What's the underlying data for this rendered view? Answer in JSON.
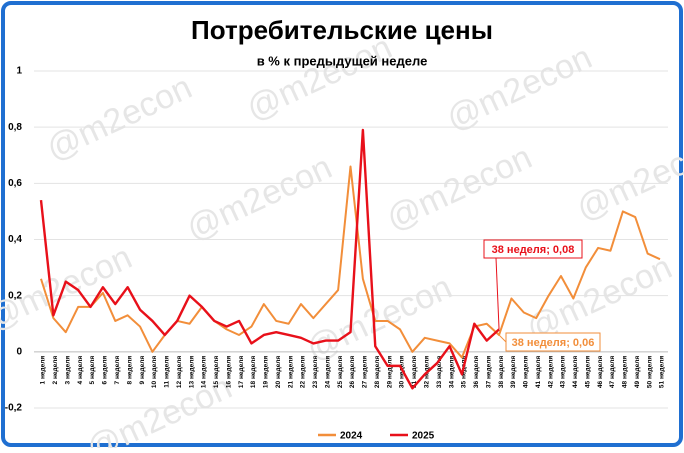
{
  "chart_data": {
    "type": "line",
    "title": "Потребительские цены",
    "subtitle": "в % к предыдущей неделе",
    "watermark": "@m2econ",
    "categories": [
      "1 неделя",
      "2 неделя",
      "3 неделя",
      "4 неделя",
      "5 неделя",
      "6 неделя",
      "7 неделя",
      "8 неделя",
      "9 неделя",
      "10 неделя",
      "11 неделя",
      "12 неделя",
      "13 неделя",
      "14 неделя",
      "15 неделя",
      "16 неделя",
      "17 неделя",
      "18 неделя",
      "19 неделя",
      "20 неделя",
      "21 неделя",
      "22 неделя",
      "23 неделя",
      "24 неделя",
      "25 неделя",
      "26 неделя",
      "27 неделя",
      "28 неделя",
      "29 неделя",
      "30 неделя",
      "31 неделя",
      "32 неделя",
      "33 неделя",
      "34 неделя",
      "35 неделя",
      "36 неделя",
      "37 неделя",
      "38 неделя",
      "39 неделя",
      "40 неделя",
      "41 неделя",
      "42 неделя",
      "43 неделя",
      "44 неделя",
      "45 неделя",
      "46 неделя",
      "47 неделя",
      "48 неделя",
      "49 неделя",
      "50 неделя",
      "51 неделя"
    ],
    "series": [
      {
        "name": "2024",
        "color": "#f28e3a",
        "values": [
          0.26,
          0.12,
          0.07,
          0.16,
          0.16,
          0.21,
          0.11,
          0.13,
          0.09,
          0.0,
          0.06,
          0.11,
          0.1,
          0.16,
          0.11,
          0.08,
          0.06,
          0.09,
          0.17,
          0.11,
          0.1,
          0.17,
          0.12,
          0.17,
          0.22,
          0.66,
          0.26,
          0.11,
          0.11,
          0.08,
          0.0,
          0.05,
          0.04,
          0.03,
          -0.02,
          0.09,
          0.1,
          0.06,
          0.19,
          0.14,
          0.12,
          0.2,
          0.27,
          0.19,
          0.3,
          0.37,
          0.36,
          0.5,
          0.48,
          0.35,
          0.33
        ]
      },
      {
        "name": "2025",
        "color": "#e8101a",
        "values": [
          0.54,
          0.13,
          0.25,
          0.22,
          0.16,
          0.23,
          0.17,
          0.23,
          0.15,
          0.11,
          0.06,
          0.11,
          0.2,
          0.16,
          0.11,
          0.09,
          0.11,
          0.03,
          0.06,
          0.07,
          0.06,
          0.05,
          0.03,
          0.04,
          0.04,
          0.07,
          0.79,
          0.02,
          -0.05,
          -0.05,
          -0.13,
          -0.08,
          -0.04,
          0.02,
          -0.08,
          0.1,
          0.04,
          0.08,
          null,
          null,
          null,
          null,
          null,
          null,
          null,
          null,
          null,
          null,
          null,
          null,
          null
        ]
      }
    ],
    "annotations": [
      {
        "text": "38 неделя; 0,08",
        "series": 1,
        "index": 37
      },
      {
        "text": "38 неделя; 0,06",
        "series": 0,
        "index": 37
      }
    ],
    "ylim": [
      -0.2,
      1
    ],
    "yticks": [
      {
        "value": -0.2,
        "label": "-0,2"
      },
      0,
      {
        "value": 0.2,
        "label": "0,2"
      },
      {
        "value": 0.4,
        "label": "0,4"
      },
      {
        "value": 0.6,
        "label": "0,6"
      },
      {
        "value": 0.8,
        "label": "0,8"
      },
      1
    ],
    "grid": true
  }
}
